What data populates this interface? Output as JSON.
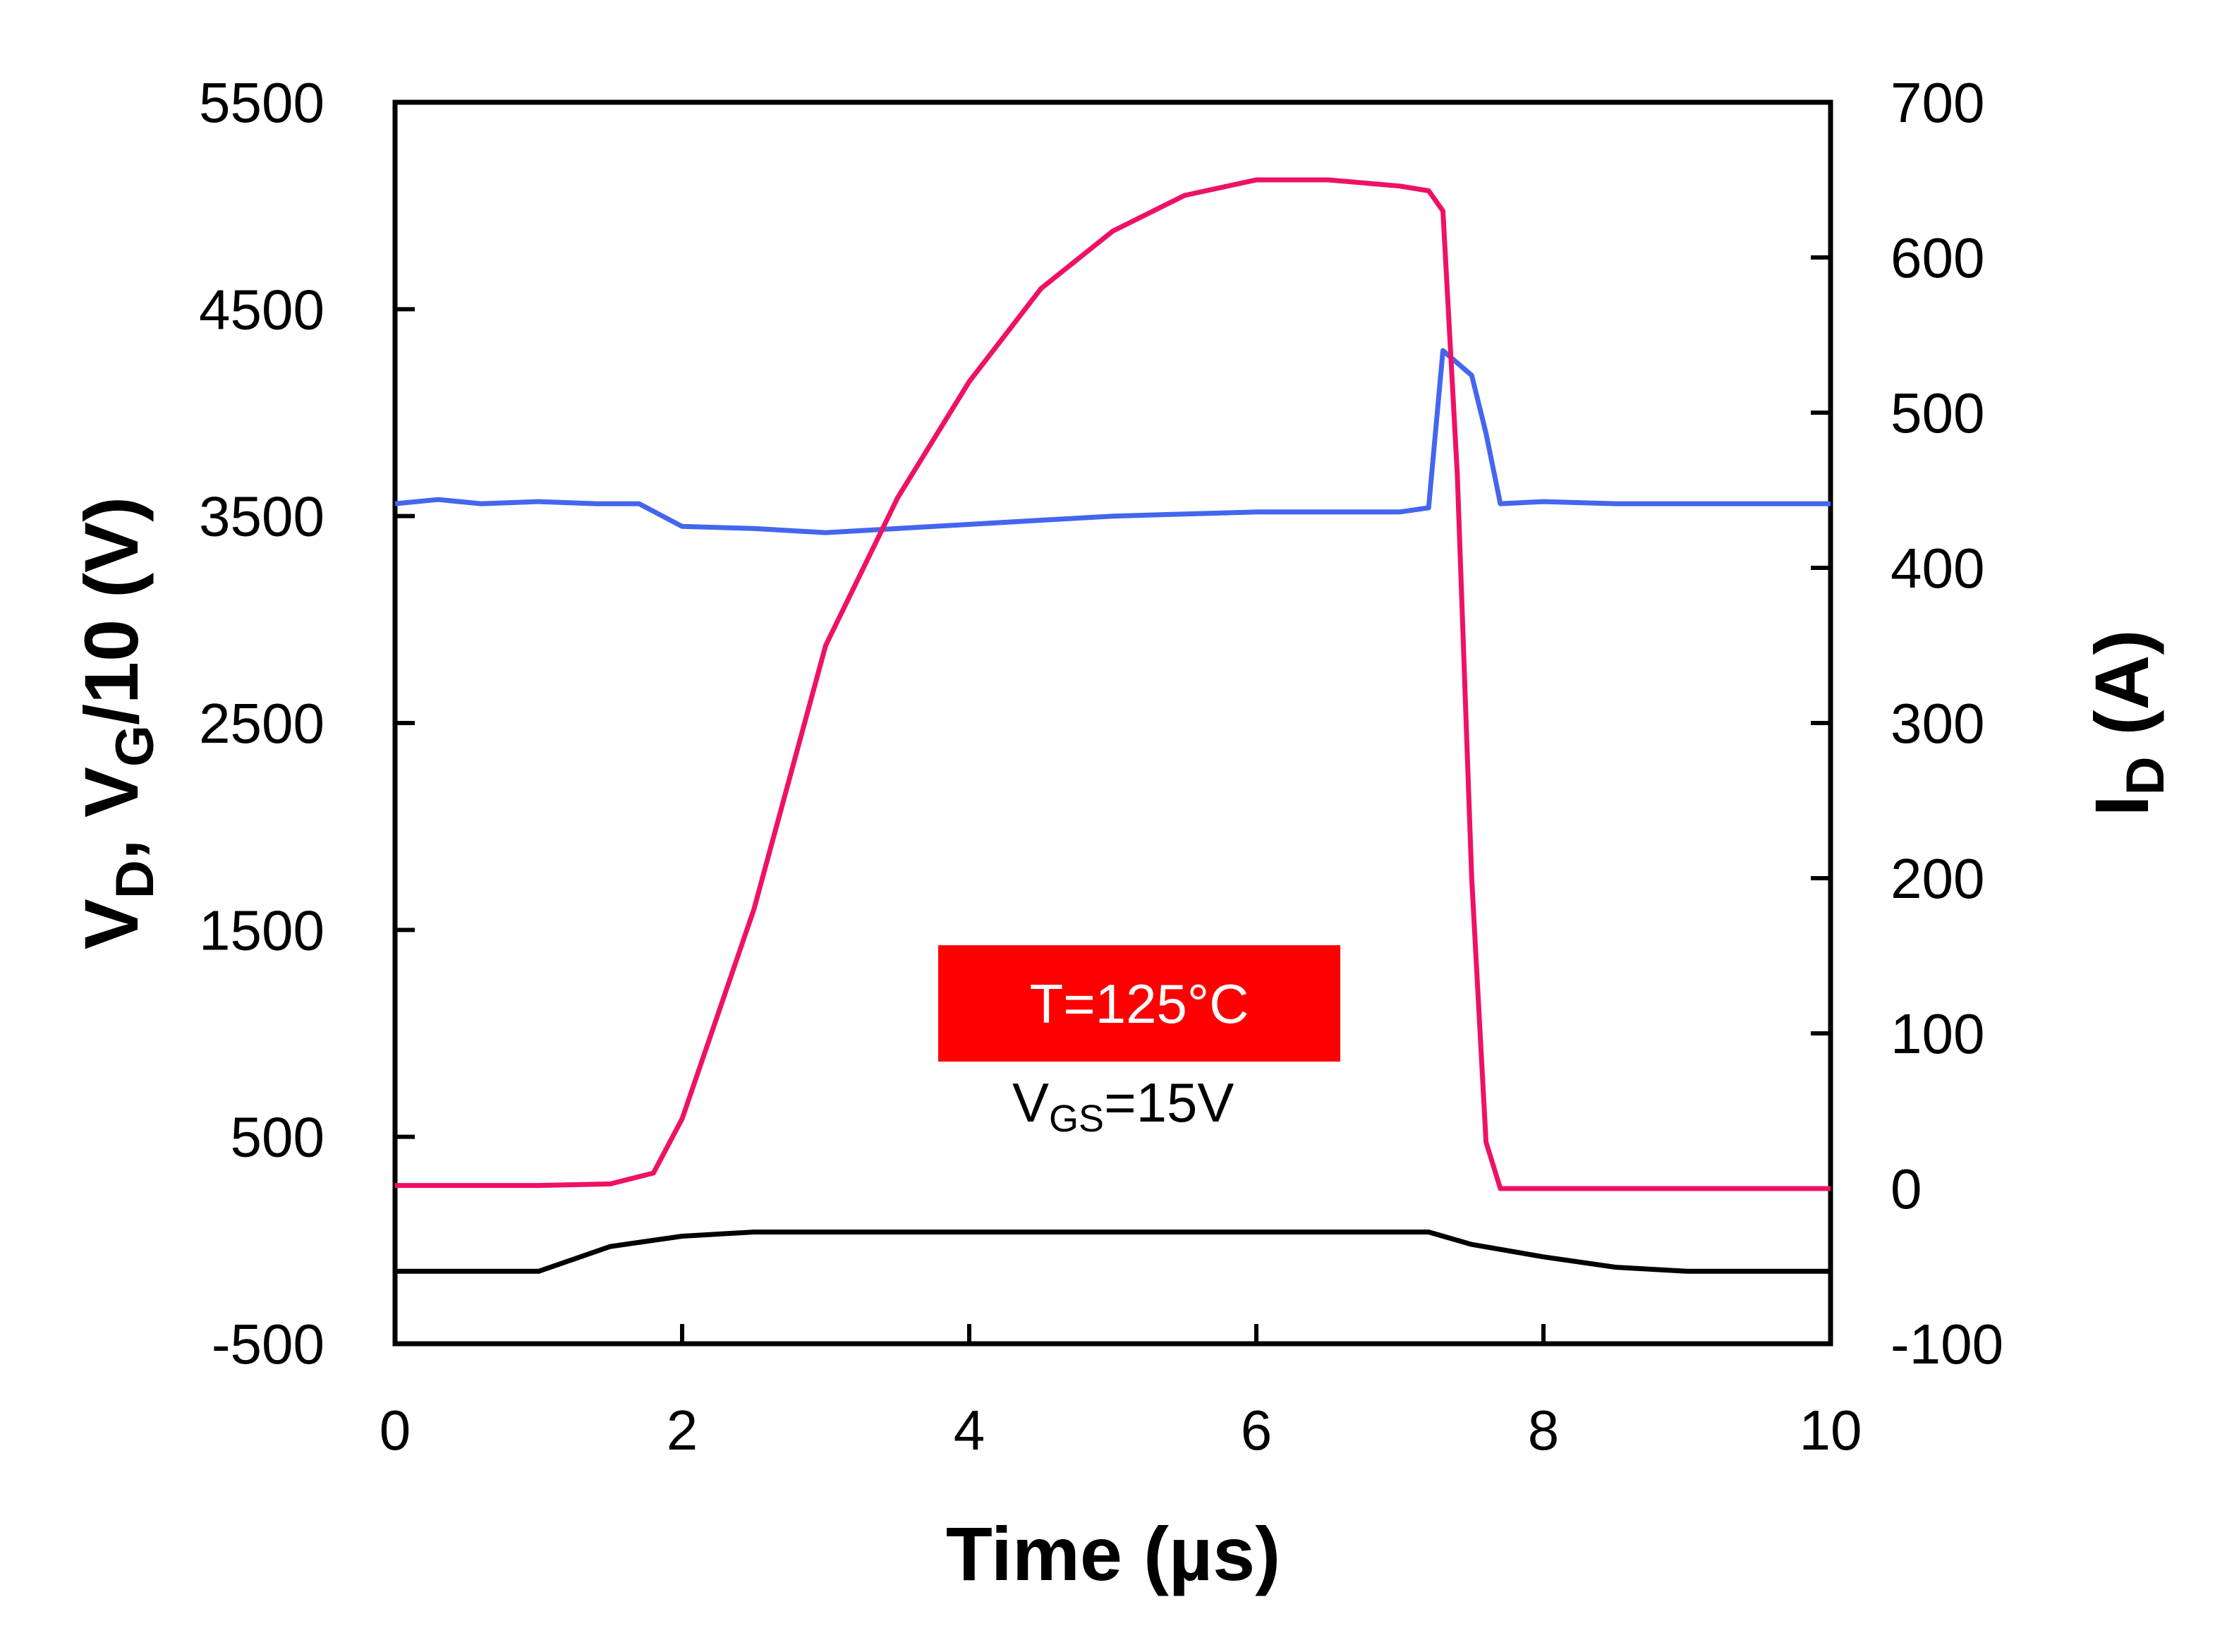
{
  "chart_data": {
    "type": "line",
    "xlabel": "Time (µs)",
    "ylabel_left": {
      "main": "V",
      "sub1": "D",
      "mid": ", V",
      "sub2": "G",
      "end": "/10 (V)"
    },
    "ylabel_right": {
      "main": "I",
      "sub": "D",
      "end": " (A)"
    },
    "xlim": [
      0,
      10
    ],
    "ylim_left": [
      -500,
      5500
    ],
    "ylim_right": [
      -100,
      700
    ],
    "x_ticks": [
      "0",
      "2",
      "4",
      "6",
      "8",
      "10"
    ],
    "y_left_ticks": [
      "-500",
      "500",
      "1500",
      "2500",
      "3500",
      "4500",
      "5500"
    ],
    "y_right_ticks": [
      "-100",
      "0",
      "100",
      "200",
      "300",
      "400",
      "500",
      "600",
      "700"
    ],
    "grid": false,
    "annotations": {
      "temperature": "T=125°C",
      "vgs_main": "V",
      "vgs_sub": "GS",
      "vgs_end": "=15V"
    },
    "series": [
      {
        "axis": "left",
        "color": "#4466ee",
        "x": [
          0,
          0.3,
          0.6,
          1.0,
          1.4,
          1.7,
          2.0,
          2.5,
          3.0,
          3.5,
          4.0,
          4.5,
          5.0,
          5.5,
          6.0,
          6.5,
          7.0,
          7.2,
          7.3,
          7.5,
          7.6,
          7.7,
          8.0,
          8.5,
          9.0,
          9.5,
          10.0
        ],
        "y": [
          3560,
          3580,
          3560,
          3570,
          3560,
          3560,
          3450,
          3440,
          3420,
          3440,
          3460,
          3480,
          3500,
          3510,
          3520,
          3520,
          3520,
          3540,
          4300,
          4180,
          3900,
          3560,
          3570,
          3560,
          3560,
          3560,
          3560
        ]
      },
      {
        "axis": "right",
        "color": "#ee1166",
        "x": [
          0,
          0.5,
          1.0,
          1.5,
          1.8,
          2.0,
          2.5,
          3.0,
          3.5,
          4.0,
          4.5,
          5.0,
          5.5,
          6.0,
          6.5,
          7.0,
          7.2,
          7.3,
          7.4,
          7.5,
          7.6,
          7.7,
          8.0,
          9.0,
          10.0
        ],
        "y": [
          2,
          2,
          2,
          3,
          10,
          45,
          180,
          350,
          445,
          520,
          580,
          617,
          640,
          650,
          650,
          646,
          643,
          630,
          460,
          200,
          30,
          0,
          0,
          0,
          0
        ]
      },
      {
        "axis": "left",
        "color": "#000000",
        "x": [
          0,
          1.0,
          1.5,
          2.0,
          2.5,
          3.0,
          4.0,
          5.0,
          6.0,
          7.0,
          7.2,
          7.5,
          8.0,
          8.5,
          9.0,
          10.0
        ],
        "y": [
          -150,
          -150,
          -30,
          20,
          40,
          40,
          40,
          40,
          40,
          40,
          40,
          -20,
          -80,
          -130,
          -150,
          -150
        ]
      }
    ]
  }
}
